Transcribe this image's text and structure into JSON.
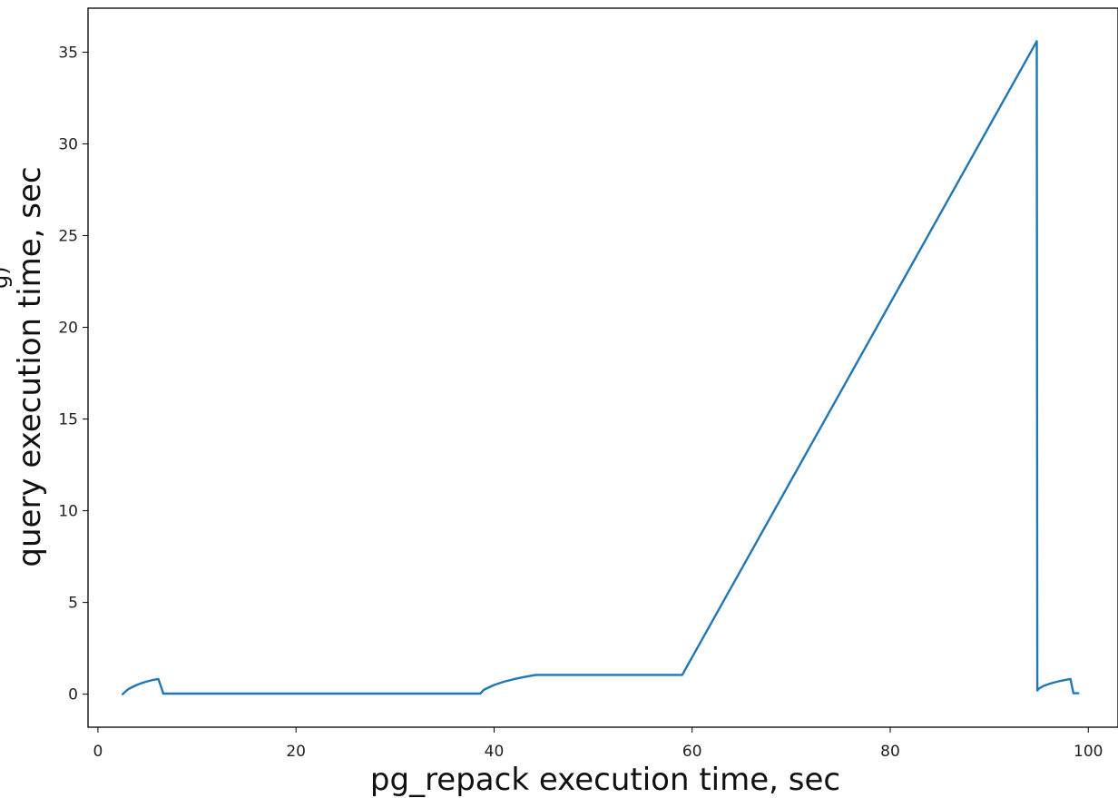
{
  "chart_data": {
    "type": "line",
    "xlabel": "pg_repack execution time, sec",
    "ylabel": "query execution time, sec",
    "xlim": [
      -1,
      103
    ],
    "ylim": [
      -1.8,
      37.4
    ],
    "xticks": [
      0,
      20,
      40,
      60,
      80,
      100
    ],
    "yticks": [
      0,
      5,
      10,
      15,
      20,
      25,
      30,
      35
    ],
    "grid": false,
    "legend": "none",
    "colors": {
      "line": "#1f77b4",
      "axes": "#000000"
    },
    "series": [
      {
        "x": [
          2.5,
          3.0,
          3.5,
          4.0,
          4.5,
          5.0,
          5.5,
          6.1,
          6.5,
          6.6,
          10,
          20,
          30,
          38.6,
          39.0,
          40.0,
          41.0,
          42.0,
          43.0,
          44.2,
          50,
          59.0,
          94.8,
          94.85,
          95.0,
          95.5,
          96.0,
          96.5,
          97.0,
          97.5,
          98.2,
          98.5,
          99.0
        ],
        "y": [
          0.0,
          0.25,
          0.4,
          0.52,
          0.62,
          0.7,
          0.77,
          0.83,
          0.2,
          0.03,
          0.03,
          0.03,
          0.03,
          0.03,
          0.25,
          0.5,
          0.68,
          0.82,
          0.93,
          1.05,
          1.05,
          1.05,
          35.6,
          0.2,
          0.3,
          0.45,
          0.55,
          0.63,
          0.7,
          0.76,
          0.83,
          0.05,
          0.05
        ]
      }
    ]
  },
  "clipped_text": "g)"
}
